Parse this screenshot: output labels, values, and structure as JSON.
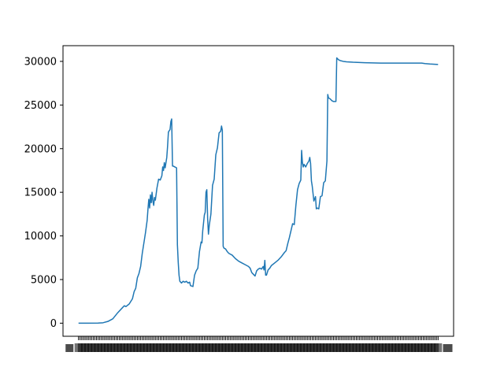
{
  "chart_data": {
    "type": "line",
    "title": "",
    "xlabel": "",
    "ylabel": "",
    "line_color": "#1f77b4",
    "ylim": [
      -1500,
      31800
    ],
    "yticks": [
      0,
      5000,
      10000,
      15000,
      20000,
      25000,
      30000
    ],
    "ytick_labels": [
      "0",
      "5000",
      "10000",
      "15000",
      "20000",
      "25000",
      "30000"
    ],
    "x_tick_labels_legible": false,
    "grid": false,
    "legend": "none",
    "series": [
      {
        "points": [
          [
            0,
            0
          ],
          [
            6,
            0
          ],
          [
            12,
            10
          ],
          [
            15,
            50
          ],
          [
            18,
            200
          ],
          [
            21,
            500
          ],
          [
            24,
            1200
          ],
          [
            27,
            1800
          ],
          [
            28,
            2000
          ],
          [
            29,
            1900
          ],
          [
            31,
            2200
          ],
          [
            33,
            2800
          ],
          [
            34,
            3600
          ],
          [
            35,
            4000
          ],
          [
            36,
            5200
          ],
          [
            37,
            5700
          ],
          [
            38,
            6500
          ],
          [
            39,
            8000
          ],
          [
            40,
            9200
          ],
          [
            41,
            10400
          ],
          [
            42,
            11800
          ],
          [
            42.5,
            13100
          ],
          [
            43,
            14200
          ],
          [
            43.5,
            13200
          ],
          [
            44,
            14700
          ],
          [
            44.5,
            13800
          ],
          [
            45,
            15000
          ],
          [
            45.5,
            14000
          ],
          [
            46,
            13500
          ],
          [
            46.5,
            14400
          ],
          [
            47,
            14100
          ],
          [
            48,
            15500
          ],
          [
            49,
            16500
          ],
          [
            50,
            16400
          ],
          [
            51,
            16900
          ],
          [
            51.5,
            17900
          ],
          [
            52,
            17500
          ],
          [
            52.5,
            18400
          ],
          [
            53,
            17800
          ],
          [
            54,
            19000
          ],
          [
            54.5,
            20300
          ],
          [
            55,
            21900
          ],
          [
            56,
            22200
          ],
          [
            56.5,
            23100
          ],
          [
            57,
            23400
          ],
          [
            57.5,
            18000
          ],
          [
            58,
            18000
          ],
          [
            59,
            17900
          ],
          [
            60,
            17800
          ],
          [
            60.5,
            9000
          ],
          [
            61,
            7000
          ],
          [
            61.5,
            5500
          ],
          [
            62,
            4800
          ],
          [
            63,
            4600
          ],
          [
            64,
            4800
          ],
          [
            65,
            4700
          ],
          [
            66,
            4800
          ],
          [
            67,
            4600
          ],
          [
            68,
            4700
          ],
          [
            68.5,
            4300
          ],
          [
            70,
            4200
          ],
          [
            71,
            5500
          ],
          [
            72,
            6000
          ],
          [
            73,
            6300
          ],
          [
            74,
            8200
          ],
          [
            75,
            9300
          ],
          [
            75.5,
            9200
          ],
          [
            76,
            10600
          ],
          [
            77,
            12400
          ],
          [
            77.5,
            12700
          ],
          [
            78,
            15000
          ],
          [
            78.5,
            15300
          ],
          [
            79,
            12000
          ],
          [
            79.5,
            10200
          ],
          [
            80,
            11200
          ],
          [
            81,
            12500
          ],
          [
            82,
            15800
          ],
          [
            83,
            16500
          ],
          [
            84,
            19300
          ],
          [
            85,
            20100
          ],
          [
            86,
            21800
          ],
          [
            87,
            22000
          ],
          [
            87.5,
            22600
          ],
          [
            88,
            22100
          ],
          [
            88.5,
            8800
          ],
          [
            89,
            8600
          ],
          [
            90,
            8500
          ],
          [
            91,
            8200
          ],
          [
            92,
            8000
          ],
          [
            94,
            7800
          ],
          [
            96,
            7400
          ],
          [
            98,
            7100
          ],
          [
            100,
            6900
          ],
          [
            102,
            6700
          ],
          [
            104,
            6500
          ],
          [
            105,
            6300
          ],
          [
            106,
            5800
          ],
          [
            107,
            5600
          ],
          [
            108,
            5400
          ],
          [
            109,
            6000
          ],
          [
            110,
            6200
          ],
          [
            111,
            6300
          ],
          [
            112,
            6200
          ],
          [
            113,
            6500
          ],
          [
            113.5,
            6100
          ],
          [
            114,
            7200
          ],
          [
            114.5,
            5500
          ],
          [
            115,
            5500
          ],
          [
            116,
            6100
          ],
          [
            117,
            6300
          ],
          [
            118,
            6600
          ],
          [
            120,
            6900
          ],
          [
            122,
            7200
          ],
          [
            124,
            7600
          ],
          [
            126,
            8100
          ],
          [
            127,
            8300
          ],
          [
            128,
            9100
          ],
          [
            129,
            9800
          ],
          [
            130,
            10600
          ],
          [
            131,
            11400
          ],
          [
            132,
            11300
          ],
          [
            133,
            13500
          ],
          [
            134,
            15300
          ],
          [
            135,
            16000
          ],
          [
            136,
            16400
          ],
          [
            136.5,
            19800
          ],
          [
            137,
            18400
          ],
          [
            137.5,
            17900
          ],
          [
            138,
            18200
          ],
          [
            139,
            17900
          ],
          [
            140,
            18300
          ],
          [
            141,
            18600
          ],
          [
            141.5,
            19000
          ],
          [
            142,
            18300
          ],
          [
            142.5,
            16300
          ],
          [
            143,
            15700
          ],
          [
            144,
            14000
          ],
          [
            145,
            14500
          ],
          [
            145.5,
            13100
          ],
          [
            146,
            13200
          ],
          [
            147,
            13100
          ],
          [
            148,
            14500
          ],
          [
            149,
            14600
          ],
          [
            150,
            16100
          ],
          [
            151,
            16300
          ],
          [
            152,
            18600
          ],
          [
            152.5,
            26200
          ],
          [
            153,
            25800
          ],
          [
            154,
            25700
          ],
          [
            155,
            25500
          ],
          [
            156,
            25400
          ],
          [
            157,
            25400
          ],
          [
            157.5,
            25400
          ],
          [
            158,
            30400
          ],
          [
            159,
            30200
          ],
          [
            160,
            30100
          ],
          [
            162,
            30000
          ],
          [
            164,
            29950
          ],
          [
            168,
            29900
          ],
          [
            175,
            29850
          ],
          [
            185,
            29800
          ],
          [
            195,
            29800
          ],
          [
            205,
            29800
          ],
          [
            210,
            29800
          ],
          [
            212,
            29750
          ],
          [
            215,
            29700
          ],
          [
            220,
            29650
          ]
        ]
      }
    ]
  }
}
